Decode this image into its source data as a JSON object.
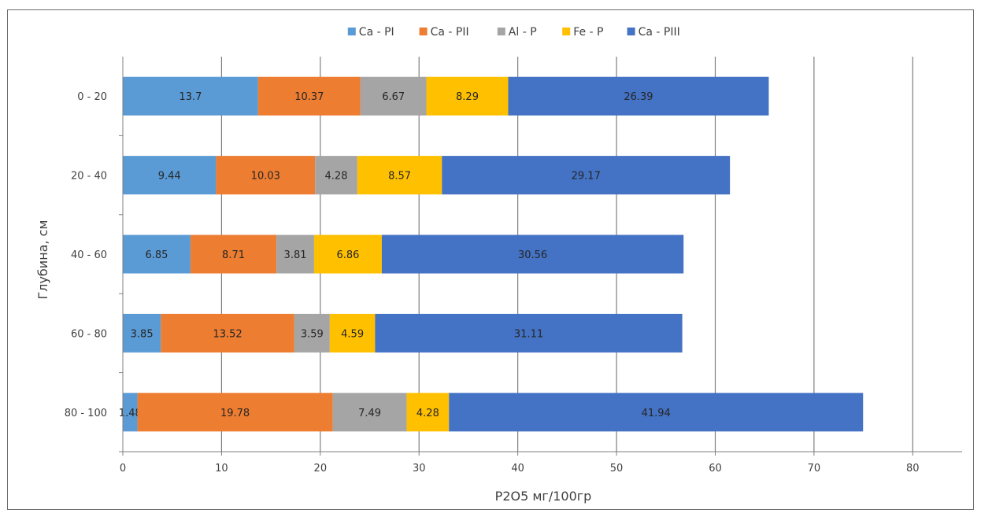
{
  "chart_data": {
    "type": "bar",
    "orientation": "horizontal",
    "stacked": true,
    "categories": [
      "0 - 20",
      "20 - 40",
      "40 - 60",
      "60 - 80",
      "80 - 100"
    ],
    "series": [
      {
        "name": "Ca - PI",
        "color": "#5B9BD5",
        "values": [
          13.7,
          9.44,
          6.85,
          3.85,
          1.48
        ]
      },
      {
        "name": "Ca - PII",
        "color": "#ED7D31",
        "values": [
          10.37,
          10.03,
          8.71,
          13.52,
          19.78
        ]
      },
      {
        "name": "Al - P",
        "color": "#A5A5A5",
        "values": [
          6.67,
          4.28,
          3.81,
          3.59,
          7.49
        ]
      },
      {
        "name": "Fe - P",
        "color": "#FFC000",
        "values": [
          8.29,
          8.57,
          6.86,
          4.59,
          4.28
        ]
      },
      {
        "name": "Ca - PIII",
        "color": "#4472C4",
        "values": [
          26.39,
          29.17,
          30.56,
          31.11,
          41.94
        ]
      }
    ],
    "xlabel": "P2O5 мг/100гр",
    "ylabel": "Глубина, см",
    "xlim": [
      0,
      85
    ],
    "xticks": [
      0,
      10,
      20,
      30,
      40,
      50,
      60,
      70,
      80
    ],
    "grid": "vertical",
    "legend": "top"
  }
}
